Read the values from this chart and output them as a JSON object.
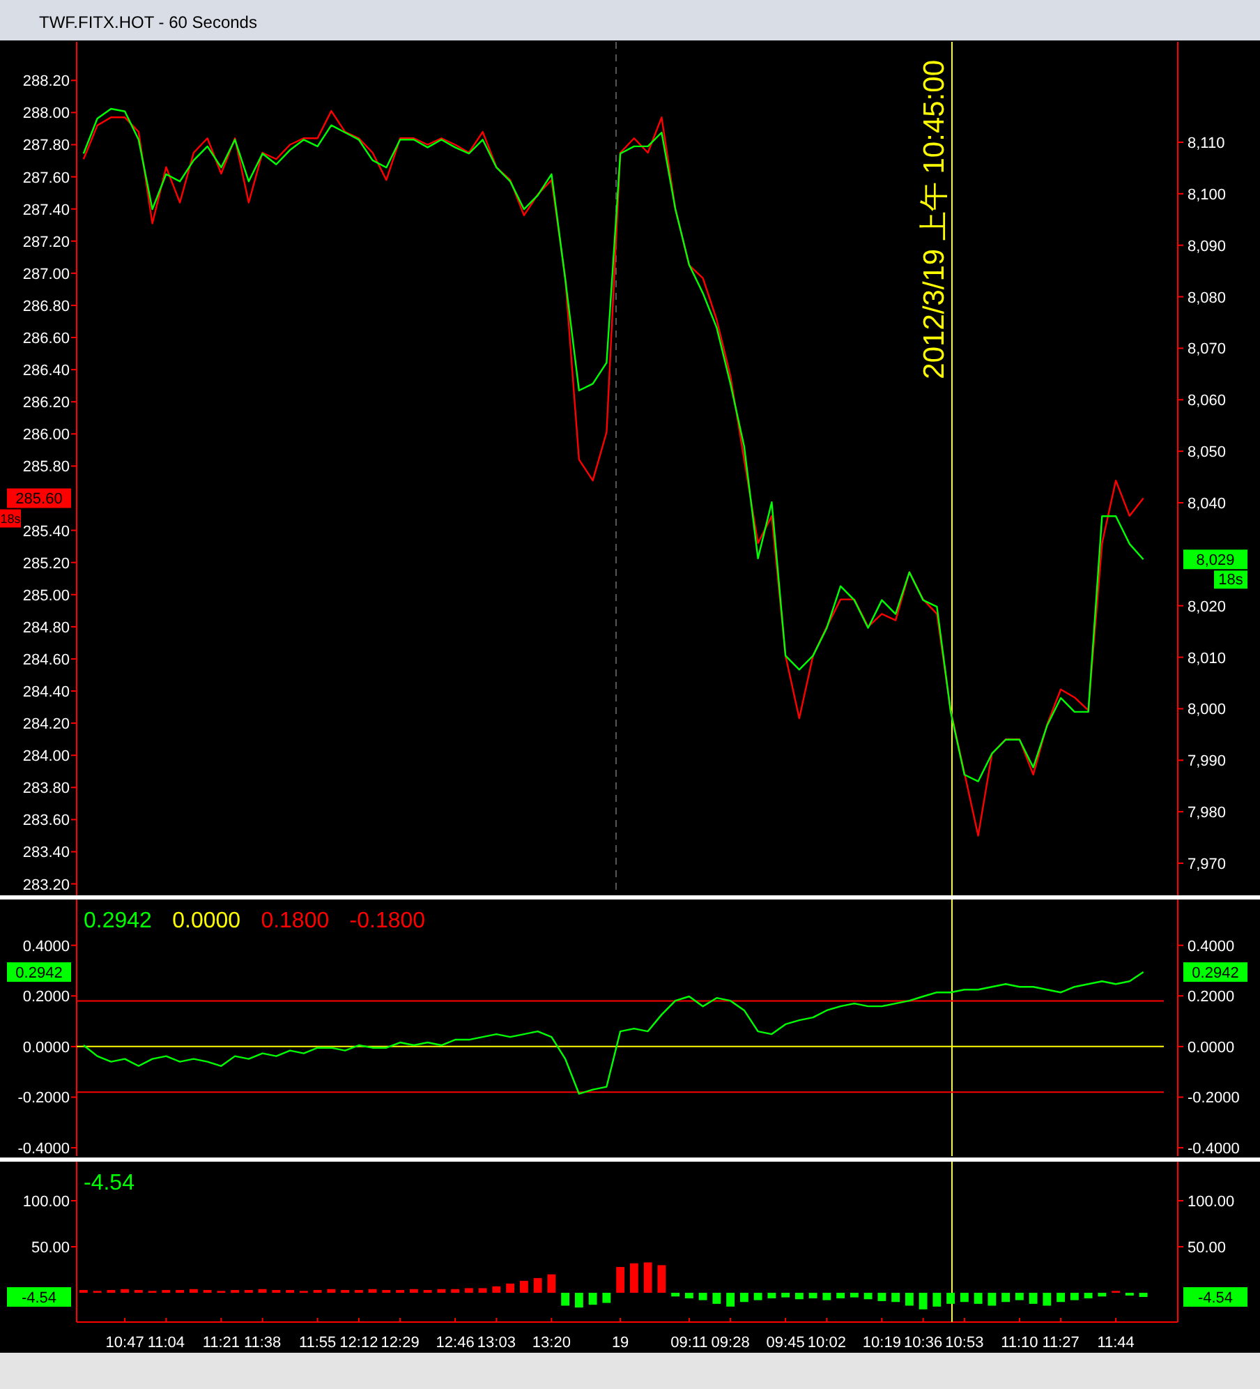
{
  "chart_data": [
    {
      "type": "line",
      "title": "TWF.FITX.HOT - 60 Seconds",
      "categories": [
        null,
        null,
        null,
        null,
        null,
        null,
        null,
        null,
        null,
        null,
        null,
        null,
        null,
        null,
        null,
        null,
        null,
        null,
        null,
        null,
        null,
        null,
        null,
        null,
        null,
        null,
        null,
        null,
        null,
        null,
        null,
        null,
        null,
        null,
        null,
        null,
        null,
        null,
        null,
        null,
        null,
        null,
        null,
        null,
        null,
        null,
        null,
        null,
        null,
        null,
        null,
        null,
        null,
        null,
        null,
        null,
        null,
        null,
        null,
        null,
        null,
        null,
        null,
        null,
        null,
        null,
        null,
        null,
        null,
        null,
        null,
        null,
        null,
        null,
        null,
        null,
        null,
        null,
        null,
        null
      ],
      "series": [
        {
          "color": "#ff0000",
          "values": [
            287.71,
            287.92,
            287.97,
            287.97,
            287.88,
            287.31,
            287.66,
            287.44,
            287.75,
            287.84,
            287.62,
            287.84,
            287.44,
            287.75,
            287.71,
            287.8,
            287.84,
            287.84,
            288.01,
            287.88,
            287.84,
            287.75,
            287.58,
            287.84,
            287.84,
            287.8,
            287.84,
            287.8,
            287.75,
            287.88,
            287.66,
            287.58,
            287.36,
            287.49,
            287.58,
            286.97,
            285.84,
            285.71,
            286.01,
            287.75,
            287.84,
            287.75,
            287.97,
            287.4,
            287.05,
            286.97,
            286.71,
            286.36,
            285.84,
            285.32,
            285.49,
            284.62,
            284.23,
            284.62,
            284.8,
            284.97,
            284.97,
            284.8,
            284.88,
            284.84,
            285.14,
            284.97,
            284.88,
            284.28,
            283.89,
            283.5,
            284.01,
            284.1,
            284.1,
            283.88,
            284.19,
            284.41,
            284.36,
            284.28,
            285.32,
            285.71,
            285.49,
            285.6,
            null,
            null
          ]
        },
        {
          "color": "#00ff00",
          "axis": "y2",
          "values": [
            8107.8,
            8114.6,
            8116.5,
            8116.0,
            8110.5,
            8097.0,
            8103.8,
            8102.4,
            8106.5,
            8109.2,
            8105.1,
            8110.5,
            8102.4,
            8107.8,
            8105.7,
            8108.5,
            8110.5,
            8109.2,
            8113.3,
            8111.9,
            8110.5,
            8106.5,
            8105.1,
            8110.5,
            8110.5,
            8109.0,
            8110.5,
            8109.0,
            8107.8,
            8110.5,
            8105.1,
            8102.4,
            8097.0,
            8099.7,
            8103.8,
            8083.4,
            8061.8,
            8063.1,
            8067.2,
            8107.8,
            8109.2,
            8109.2,
            8111.9,
            8097.0,
            8086.2,
            8080.7,
            8074.0,
            8063.1,
            8050.9,
            8029.2,
            8040.1,
            8010.3,
            8007.6,
            8010.3,
            8015.7,
            8023.8,
            8021.1,
            8015.7,
            8021.1,
            8018.4,
            8026.5,
            8021.1,
            8019.8,
            7999.4,
            7987.2,
            7985.9,
            7991.3,
            7994.0,
            7994.0,
            7988.6,
            7996.7,
            8002.1,
            7999.4,
            7999.4,
            8037.4,
            8037.4,
            8032.0,
            8029.0,
            null,
            null
          ]
        }
      ],
      "ylim": [
        283.12,
        288.44
      ],
      "y2lim": [
        7963.5,
        8129.5
      ],
      "yticks": [
        {
          "value": 283.2,
          "label": "283.20"
        },
        {
          "value": 283.4,
          "label": "283.40"
        },
        {
          "value": 283.6,
          "label": "283.60"
        },
        {
          "value": 283.8,
          "label": "283.80"
        },
        {
          "value": 284.0,
          "label": "284.00"
        },
        {
          "value": 284.2,
          "label": "284.20"
        },
        {
          "value": 284.4,
          "label": "284.40"
        },
        {
          "value": 284.6,
          "label": "284.60"
        },
        {
          "value": 284.8,
          "label": "284.80"
        },
        {
          "value": 285.0,
          "label": "285.00"
        },
        {
          "value": 285.2,
          "label": "285.20"
        },
        {
          "value": 285.4,
          "label": "285.40"
        },
        {
          "value": 285.8,
          "label": "285.80"
        },
        {
          "value": 286.0,
          "label": "286.00"
        },
        {
          "value": 286.2,
          "label": "286.20"
        },
        {
          "value": 286.4,
          "label": "286.40"
        },
        {
          "value": 286.6,
          "label": "286.60"
        },
        {
          "value": 286.8,
          "label": "286.80"
        },
        {
          "value": 287.0,
          "label": "287.00"
        },
        {
          "value": 287.2,
          "label": "287.20"
        },
        {
          "value": 287.4,
          "label": "287.40"
        },
        {
          "value": 287.6,
          "label": "287.60"
        },
        {
          "value": 287.8,
          "label": "287.80"
        },
        {
          "value": 288.0,
          "label": "288.00"
        },
        {
          "value": 288.2,
          "label": "288.20"
        }
      ],
      "y2ticks": [
        {
          "value": 7970,
          "label": "7,970"
        },
        {
          "value": 7980,
          "label": "7,980"
        },
        {
          "value": 7990,
          "label": "7,990"
        },
        {
          "value": 8000,
          "label": "8,000"
        },
        {
          "value": 8010,
          "label": "8,010"
        },
        {
          "value": 8020,
          "label": "8,020"
        },
        {
          "value": 8040,
          "label": "8,040"
        },
        {
          "value": 8050,
          "label": "8,050"
        },
        {
          "value": 8060,
          "label": "8,060"
        },
        {
          "value": 8070,
          "label": "8,070"
        },
        {
          "value": 8080,
          "label": "8,080"
        },
        {
          "value": 8090,
          "label": "8,090"
        },
        {
          "value": 8100,
          "label": "8,100"
        },
        {
          "value": 8110,
          "label": "8,110"
        }
      ],
      "tick_labels": "y",
      "annotations": [
        "2012/3/19 上午 10:45:00",
        "285.60",
        "18s",
        "8,029",
        "18s"
      ]
    },
    {
      "type": "line",
      "categories": [
        null,
        null,
        null,
        null,
        null,
        null,
        null,
        null,
        null,
        null,
        null,
        null,
        null,
        null,
        null,
        null,
        null,
        null,
        null,
        null,
        null,
        null,
        null,
        null,
        null,
        null,
        null,
        null,
        null,
        null,
        null,
        null,
        null,
        null,
        null,
        null,
        null,
        null,
        null,
        null,
        null,
        null,
        null,
        null,
        null,
        null,
        null,
        null,
        null,
        null,
        null,
        null,
        null,
        null,
        null,
        null,
        null,
        null,
        null,
        null,
        null,
        null,
        null,
        null,
        null,
        null,
        null,
        null,
        null,
        null,
        null,
        null,
        null,
        null,
        null,
        null,
        null,
        null,
        null,
        null
      ],
      "series": [
        {
          "color": "#00ff00",
          "values": [
            0.005,
            -0.038,
            -0.06,
            -0.049,
            -0.077,
            -0.049,
            -0.038,
            -0.06,
            -0.049,
            -0.06,
            -0.077,
            -0.038,
            -0.049,
            -0.027,
            -0.038,
            -0.016,
            -0.027,
            -0.005,
            -0.005,
            -0.016,
            0.005,
            -0.005,
            -0.005,
            0.016,
            0.005,
            0.016,
            0.005,
            0.027,
            0.027,
            0.038,
            0.049,
            0.038,
            0.049,
            0.06,
            0.038,
            -0.049,
            -0.187,
            -0.17,
            -0.159,
            0.06,
            0.071,
            0.06,
            0.126,
            0.181,
            0.198,
            0.159,
            0.192,
            0.181,
            0.143,
            0.06,
            0.049,
            0.088,
            0.104,
            0.115,
            0.143,
            0.159,
            0.17,
            0.159,
            0.159,
            0.17,
            0.181,
            0.198,
            0.214,
            0.214,
            0.225,
            0.225,
            0.236,
            0.247,
            0.236,
            0.236,
            0.225,
            0.214,
            0.236,
            0.247,
            0.258,
            0.247,
            0.258,
            0.2942,
            null,
            null
          ]
        }
      ],
      "ylim": [
        -0.433,
        0.581
      ],
      "y2lim": [
        -0.433,
        0.581
      ],
      "yticks": [
        {
          "value": -0.4,
          "label": "-0.4000"
        },
        {
          "value": -0.2,
          "label": "-0.2000"
        },
        {
          "value": 0,
          "label": "0.0000"
        },
        {
          "value": 0.2,
          "label": "0.2000"
        },
        {
          "value": 0.4,
          "label": "0.4000"
        }
      ],
      "y2ticks": [
        {
          "value": -0.4,
          "label": "-0.4000"
        },
        {
          "value": -0.2,
          "label": "-0.2000"
        },
        {
          "value": 0,
          "label": "0.0000"
        },
        {
          "value": 0.2,
          "label": "0.2000"
        },
        {
          "value": 0.4,
          "label": "0.4000"
        }
      ],
      "tick_labels": "y",
      "ref_lines": [
        {
          "axis": "y",
          "value": 0,
          "color": "#ffff00",
          "label": "0.0000"
        },
        {
          "axis": "y",
          "value": 0.18,
          "color": "#ff0000",
          "label": "0.1800"
        },
        {
          "axis": "y",
          "value": -0.18,
          "color": "#ff0000",
          "label": "-0.1800"
        }
      ],
      "annotations": [
        "0.2942",
        "0.2942",
        "0.2942"
      ]
    },
    {
      "type": "bar",
      "categories": [
        null,
        null,
        null,
        "10:47",
        null,
        null,
        "11:04",
        null,
        null,
        null,
        "11:21",
        null,
        null,
        "11:38",
        null,
        null,
        null,
        "11:55",
        null,
        null,
        "12:12",
        null,
        null,
        "12:29",
        null,
        null,
        null,
        "12:46",
        null,
        null,
        "13:03",
        null,
        null,
        null,
        "13:20",
        null,
        null,
        null,
        null,
        "19",
        null,
        null,
        null,
        null,
        "09:11",
        null,
        null,
        "09:28",
        null,
        null,
        null,
        "09:45",
        null,
        null,
        "10:02",
        null,
        null,
        null,
        "10:19",
        null,
        null,
        "10:36",
        null,
        null,
        "10:53",
        null,
        null,
        null,
        "11:10",
        null,
        null,
        "11:27",
        null,
        null,
        null,
        "11:44",
        null,
        null,
        null,
        null
      ],
      "series": [
        {
          "values": [
            3,
            2,
            3,
            4,
            3,
            2,
            3,
            3,
            4,
            3,
            2,
            3,
            3,
            4,
            3,
            3,
            2,
            3,
            4,
            3,
            3,
            4,
            3,
            3,
            4,
            3,
            4,
            4,
            5,
            5,
            7,
            10,
            13,
            16,
            20,
            -14,
            -16,
            -13,
            -11,
            28,
            32,
            33,
            30,
            -4,
            -6,
            -8,
            -12,
            -15,
            -10,
            -8,
            -6,
            -5,
            -7,
            -6,
            -8,
            -6,
            -5,
            -7,
            -9,
            -10,
            -14,
            -18,
            -15,
            -12,
            -10,
            -12,
            -14,
            -10,
            -8,
            -12,
            -14,
            -10,
            -8,
            -6,
            -4,
            2,
            -3,
            -4.54,
            null,
            null
          ],
          "colors": [
            "#ff0000",
            "#ff0000",
            "#ff0000",
            "#ff0000",
            "#ff0000",
            "#ff0000",
            "#ff0000",
            "#ff0000",
            "#ff0000",
            "#ff0000",
            "#ff0000",
            "#ff0000",
            "#ff0000",
            "#ff0000",
            "#ff0000",
            "#ff0000",
            "#ff0000",
            "#ff0000",
            "#ff0000",
            "#ff0000",
            "#ff0000",
            "#ff0000",
            "#ff0000",
            "#ff0000",
            "#ff0000",
            "#ff0000",
            "#ff0000",
            "#ff0000",
            "#ff0000",
            "#ff0000",
            "#ff0000",
            "#ff0000",
            "#ff0000",
            "#ff0000",
            "#ff0000",
            "#00ff00",
            "#00ff00",
            "#00ff00",
            "#00ff00",
            "#ff0000",
            "#ff0000",
            "#ff0000",
            "#ff0000",
            "#00ff00",
            "#00ff00",
            "#00ff00",
            "#00ff00",
            "#00ff00",
            "#00ff00",
            "#00ff00",
            "#00ff00",
            "#00ff00",
            "#00ff00",
            "#00ff00",
            "#00ff00",
            "#00ff00",
            "#00ff00",
            "#00ff00",
            "#00ff00",
            "#00ff00",
            "#00ff00",
            "#00ff00",
            "#00ff00",
            "#00ff00",
            "#00ff00",
            "#00ff00",
            "#00ff00",
            "#00ff00",
            "#00ff00",
            "#00ff00",
            "#00ff00",
            "#00ff00",
            "#00ff00",
            "#00ff00",
            "#00ff00",
            "#ff0000",
            "#00ff00",
            "#00ff00",
            "#00ff00",
            "#00ff00"
          ]
        }
      ],
      "ylim": [
        -31.8,
        142.4
      ],
      "y2lim": [
        -31.8,
        142.4
      ],
      "yticks": [
        {
          "value": 50,
          "label": "50.00"
        },
        {
          "value": 100,
          "label": "100.00"
        }
      ],
      "y2ticks": [
        {
          "value": 50,
          "label": "50.00"
        },
        {
          "value": 100,
          "label": "100.00"
        }
      ],
      "annotations": [
        "-4.54",
        "-4.54",
        "-4.54"
      ]
    }
  ]
}
